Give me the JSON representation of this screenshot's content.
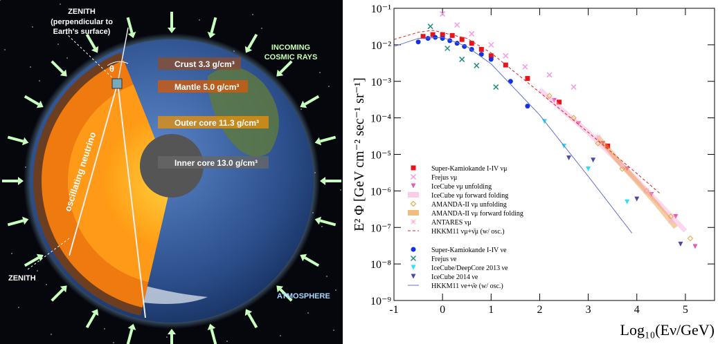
{
  "illustration": {
    "zenith_top": "ZENITH",
    "zenith_note": [
      "(perpendicular to",
      "Earth's surface)"
    ],
    "theta": "θ",
    "crust": "Crust 3.3 g/cm³",
    "mantle": "Mantle 5.0 g/cm³",
    "outer_core": "Outer core 11.3 g/cm³",
    "inner_core": "Inner core 13.0 g/cm³",
    "incoming": [
      "INCOMING",
      "COSMIC RAYS"
    ],
    "neutrino": "oscillating neutrino",
    "zenith_bottom": "ZENITH",
    "atmosphere": "ATMOSPHERE"
  },
  "chart_data": {
    "type": "scatter",
    "y_label": "E² Φ [GeV cm⁻² sec⁻¹ sr⁻¹]",
    "x_label": "Log₁₀(Eν/GeV)",
    "xlim": [
      -1,
      5.6
    ],
    "ylim": [
      1e-09,
      0.1
    ],
    "ylog": true,
    "xticks": [
      -1,
      0,
      1,
      2,
      3,
      4,
      5
    ],
    "yticks": [
      {
        "value": 1e-09,
        "label": "10⁻⁹"
      },
      {
        "value": 1e-08,
        "label": "10⁻⁸"
      },
      {
        "value": 1e-07,
        "label": "10⁻⁷"
      },
      {
        "value": 1e-06,
        "label": "10⁻⁶"
      },
      {
        "value": 1e-05,
        "label": "10⁻⁵"
      },
      {
        "value": 0.0001,
        "label": "10⁻⁴"
      },
      {
        "value": 0.001,
        "label": "10⁻³"
      },
      {
        "value": 0.01,
        "label": "10⁻²"
      },
      {
        "value": 0.1,
        "label": "10⁻¹"
      }
    ],
    "legend": "lower left",
    "series": [
      {
        "name": "Super-Kamiokande I-IV νμ",
        "color": "#e8141c",
        "style": "marker",
        "marker": "square",
        "x": [
          -0.4,
          -0.2,
          0,
          0.2,
          0.4,
          0.6,
          0.8,
          1.0,
          1.3,
          1.75,
          2.4,
          3.4
        ],
        "values": [
          0.017,
          0.019,
          0.019,
          0.018,
          0.014,
          0.011,
          0.0075,
          0.005,
          0.0028,
          0.0012,
          0.00027,
          1.7e-05
        ]
      },
      {
        "name": "Frejus νμ",
        "color": "#f59be0",
        "style": "marker",
        "marker": "x",
        "x": [
          0,
          0.3,
          0.6,
          1.0,
          1.3,
          1.7,
          2.2,
          2.7
        ],
        "values": [
          0.07,
          0.035,
          0.02,
          0.01,
          0.005,
          0.0025,
          0.0015,
          0.0007
        ]
      },
      {
        "name": "IceCube νμ unfolding",
        "color": "#e85ab4",
        "style": "marker",
        "marker": "tri-down",
        "x": [
          2.3,
          2.8,
          3.3,
          3.8,
          4.3,
          4.8,
          5.2
        ],
        "values": [
          0.0003,
          7e-05,
          2e-05,
          4e-06,
          8e-07,
          2e-07,
          3e-08
        ]
      },
      {
        "name": "IceCube νμ forward folding",
        "color": "#f9a8de",
        "style": "band",
        "x": [
          2.0,
          2.5,
          3.0,
          3.5,
          4.0,
          4.5,
          5.0
        ],
        "values": [
          0.0006,
          0.00015,
          4e-05,
          9e-06,
          2e-06,
          4e-07,
          8e-08
        ]
      },
      {
        "name": "AMANDA-II νμ unfolding",
        "color": "#f0a030",
        "style": "marker",
        "marker": "diamond",
        "x": [
          2.2,
          2.7,
          3.2,
          3.7,
          4.2,
          4.7,
          5.1
        ],
        "values": [
          0.0004,
          0.0001,
          2e-05,
          4e-06,
          1e-06,
          2e-07,
          5e-08
        ]
      },
      {
        "name": "AMANDA-II νμ forward folding",
        "color": "#e8902c",
        "style": "band",
        "x": [
          3.2,
          3.6,
          4.0,
          4.4,
          4.8
        ],
        "values": [
          3e-05,
          7e-06,
          1.8e-06,
          4.5e-07,
          1e-07
        ]
      },
      {
        "name": "ANTARES νμ",
        "color": "#f5b8d8",
        "style": "marker",
        "marker": "star",
        "x": [
          3.2,
          3.7,
          4.2,
          4.7
        ],
        "values": [
          3e-05,
          5e-06,
          1e-06,
          1.5e-07
        ]
      },
      {
        "name": "HKKM11 νμ+ν̄μ (w/ osc.)",
        "color": "#e02020",
        "style": "line",
        "dash": true,
        "x": [
          -1,
          -0.5,
          -0.2,
          0.5,
          1,
          2,
          3,
          4,
          4.5
        ],
        "values": [
          0.014,
          0.022,
          0.025,
          0.015,
          0.006,
          0.0005,
          4e-05,
          3e-06,
          8e-07
        ]
      },
      {
        "name": "Super-Kamiokande I-IV νe",
        "color": "#1430e0",
        "style": "marker",
        "marker": "circle",
        "x": [
          -0.5,
          -0.3,
          -0.15,
          0,
          0.15,
          0.3,
          0.45,
          0.6,
          0.8,
          1.0,
          1.4,
          1.75
        ],
        "values": [
          0.012,
          0.015,
          0.016,
          0.015,
          0.013,
          0.011,
          0.009,
          0.0075,
          0.0055,
          0.004,
          0.001,
          0.00021
        ]
      },
      {
        "name": "Frejus νe",
        "color": "#208c80",
        "style": "marker",
        "marker": "x",
        "x": [
          -0.25,
          0.1,
          0.4,
          0.7,
          1.1
        ],
        "values": [
          0.032,
          0.008,
          0.004,
          0.0027,
          0.0007
        ]
      },
      {
        "name": "IceCube/DeepCore 2013 νe",
        "color": "#30e0f0",
        "style": "marker",
        "marker": "tri-down",
        "x": [
          2.1,
          2.5,
          3.0,
          3.8
        ],
        "values": [
          8e-05,
          1.7e-05,
          4e-06,
          5e-07
        ]
      },
      {
        "name": "IceCube 2014 νe",
        "color": "#4a4aa8",
        "style": "marker",
        "marker": "tri-down",
        "x": [
          2.6,
          3.1,
          4.0,
          4.9
        ],
        "values": [
          8e-06,
          7e-06,
          6e-07,
          3.5e-08
        ]
      },
      {
        "name": "HKKM11 νe+ν̄e (w/ osc.)",
        "color": "#6070d0",
        "style": "line",
        "dash": false,
        "x": [
          -1,
          -0.5,
          0,
          0.5,
          1,
          2,
          3,
          3.9
        ],
        "values": [
          0.009,
          0.015,
          0.016,
          0.009,
          0.003,
          0.00012,
          2.5e-06,
          7e-08
        ]
      }
    ]
  }
}
